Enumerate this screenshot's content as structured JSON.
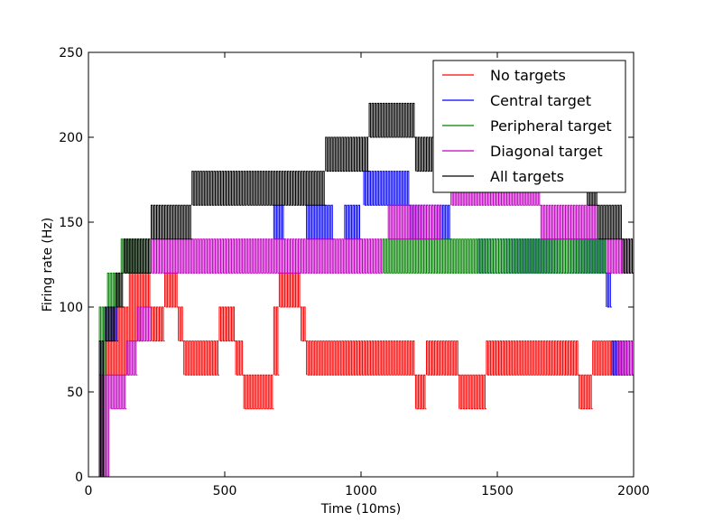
{
  "chart_data": {
    "type": "line",
    "title": "",
    "xlabel": "Time (10ms)",
    "ylabel": "Firing rate (Hz)",
    "xlim": [
      0,
      2000
    ],
    "ylim": [
      0,
      250
    ],
    "xticks": [
      "0",
      "500",
      "1000",
      "1500",
      "2000"
    ],
    "yticks": [
      "0",
      "50",
      "100",
      "150",
      "200",
      "250"
    ],
    "grid": false,
    "legend_position": "top-right",
    "series": [
      {
        "name": "No targets",
        "color": "#ff0000",
        "levels": [
          {
            "x0": 40,
            "x1": 60,
            "lo": 0,
            "hi": 60
          },
          {
            "x0": 60,
            "x1": 90,
            "lo": 60,
            "hi": 80
          },
          {
            "x0": 90,
            "x1": 150,
            "lo": 60,
            "hi": 100
          },
          {
            "x0": 150,
            "x1": 200,
            "lo": 80,
            "hi": 120
          },
          {
            "x0": 200,
            "x1": 230,
            "lo": 100,
            "hi": 120
          },
          {
            "x0": 230,
            "x1": 280,
            "lo": 80,
            "hi": 100
          },
          {
            "x0": 280,
            "x1": 330,
            "lo": 100,
            "hi": 120
          },
          {
            "x0": 330,
            "x1": 350,
            "lo": 80,
            "hi": 100
          },
          {
            "x0": 350,
            "x1": 480,
            "lo": 60,
            "hi": 80
          },
          {
            "x0": 480,
            "x1": 540,
            "lo": 80,
            "hi": 100
          },
          {
            "x0": 540,
            "x1": 570,
            "lo": 60,
            "hi": 80
          },
          {
            "x0": 570,
            "x1": 640,
            "lo": 40,
            "hi": 60
          },
          {
            "x0": 640,
            "x1": 680,
            "lo": 40,
            "hi": 60
          },
          {
            "x0": 680,
            "x1": 700,
            "lo": 60,
            "hi": 100
          },
          {
            "x0": 700,
            "x1": 780,
            "lo": 100,
            "hi": 120
          },
          {
            "x0": 780,
            "x1": 800,
            "lo": 80,
            "hi": 100
          },
          {
            "x0": 800,
            "x1": 1200,
            "lo": 60,
            "hi": 80
          },
          {
            "x0": 1200,
            "x1": 1240,
            "lo": 40,
            "hi": 60
          },
          {
            "x0": 1240,
            "x1": 1300,
            "lo": 60,
            "hi": 80
          },
          {
            "x0": 1300,
            "x1": 1360,
            "lo": 60,
            "hi": 80
          },
          {
            "x0": 1360,
            "x1": 1400,
            "lo": 40,
            "hi": 60
          },
          {
            "x0": 1400,
            "x1": 1460,
            "lo": 40,
            "hi": 60
          },
          {
            "x0": 1460,
            "x1": 1800,
            "lo": 60,
            "hi": 80
          },
          {
            "x0": 1800,
            "x1": 1850,
            "lo": 40,
            "hi": 60
          },
          {
            "x0": 1850,
            "x1": 2000,
            "lo": 60,
            "hi": 80
          }
        ]
      },
      {
        "name": "Central target",
        "color": "#0000ff",
        "levels": [
          {
            "x0": 40,
            "x1": 60,
            "lo": 0,
            "hi": 80
          },
          {
            "x0": 60,
            "x1": 110,
            "lo": 80,
            "hi": 100
          },
          {
            "x0": 680,
            "x1": 720,
            "lo": 140,
            "hi": 160
          },
          {
            "x0": 800,
            "x1": 900,
            "lo": 140,
            "hi": 160
          },
          {
            "x0": 940,
            "x1": 1000,
            "lo": 140,
            "hi": 160
          },
          {
            "x0": 1010,
            "x1": 1180,
            "lo": 160,
            "hi": 180
          },
          {
            "x0": 1180,
            "x1": 1330,
            "lo": 140,
            "hi": 160
          },
          {
            "x0": 1430,
            "x1": 1900,
            "lo": 120,
            "hi": 140
          },
          {
            "x0": 1900,
            "x1": 1920,
            "lo": 100,
            "hi": 120
          },
          {
            "x0": 1920,
            "x1": 2000,
            "lo": 60,
            "hi": 80
          }
        ]
      },
      {
        "name": "Peripheral target",
        "color": "#008000",
        "levels": [
          {
            "x0": 40,
            "x1": 70,
            "lo": 0,
            "hi": 100
          },
          {
            "x0": 70,
            "x1": 120,
            "lo": 100,
            "hi": 120
          },
          {
            "x0": 120,
            "x1": 230,
            "lo": 120,
            "hi": 140
          },
          {
            "x0": 1080,
            "x1": 1900,
            "lo": 120,
            "hi": 140
          }
        ]
      },
      {
        "name": "Diagonal target",
        "color": "#bf00bf",
        "levels": [
          {
            "x0": 40,
            "x1": 80,
            "lo": 0,
            "hi": 60
          },
          {
            "x0": 80,
            "x1": 140,
            "lo": 40,
            "hi": 60
          },
          {
            "x0": 140,
            "x1": 180,
            "lo": 60,
            "hi": 80
          },
          {
            "x0": 180,
            "x1": 230,
            "lo": 80,
            "hi": 100
          },
          {
            "x0": 230,
            "x1": 1080,
            "lo": 120,
            "hi": 140
          },
          {
            "x0": 1100,
            "x1": 1300,
            "lo": 140,
            "hi": 160
          },
          {
            "x0": 1330,
            "x1": 1660,
            "lo": 160,
            "hi": 180
          },
          {
            "x0": 1660,
            "x1": 1870,
            "lo": 140,
            "hi": 160
          },
          {
            "x0": 1900,
            "x1": 2000,
            "lo": 120,
            "hi": 140
          },
          {
            "x0": 1940,
            "x1": 2000,
            "lo": 60,
            "hi": 80
          }
        ]
      },
      {
        "name": "All targets",
        "color": "#000000",
        "levels": [
          {
            "x0": 40,
            "x1": 60,
            "lo": 0,
            "hi": 80
          },
          {
            "x0": 60,
            "x1": 100,
            "lo": 80,
            "hi": 100
          },
          {
            "x0": 100,
            "x1": 130,
            "lo": 100,
            "hi": 120
          },
          {
            "x0": 130,
            "x1": 230,
            "lo": 120,
            "hi": 140
          },
          {
            "x0": 230,
            "x1": 380,
            "lo": 140,
            "hi": 160
          },
          {
            "x0": 380,
            "x1": 580,
            "lo": 160,
            "hi": 180
          },
          {
            "x0": 580,
            "x1": 870,
            "lo": 160,
            "hi": 180
          },
          {
            "x0": 870,
            "x1": 1030,
            "lo": 180,
            "hi": 200
          },
          {
            "x0": 1030,
            "x1": 1200,
            "lo": 200,
            "hi": 220
          },
          {
            "x0": 1200,
            "x1": 1330,
            "lo": 180,
            "hi": 200
          },
          {
            "x0": 1830,
            "x1": 1870,
            "lo": 160,
            "hi": 180
          },
          {
            "x0": 1870,
            "x1": 1960,
            "lo": 140,
            "hi": 160
          },
          {
            "x0": 1960,
            "x1": 2000,
            "lo": 120,
            "hi": 140
          }
        ]
      }
    ]
  }
}
